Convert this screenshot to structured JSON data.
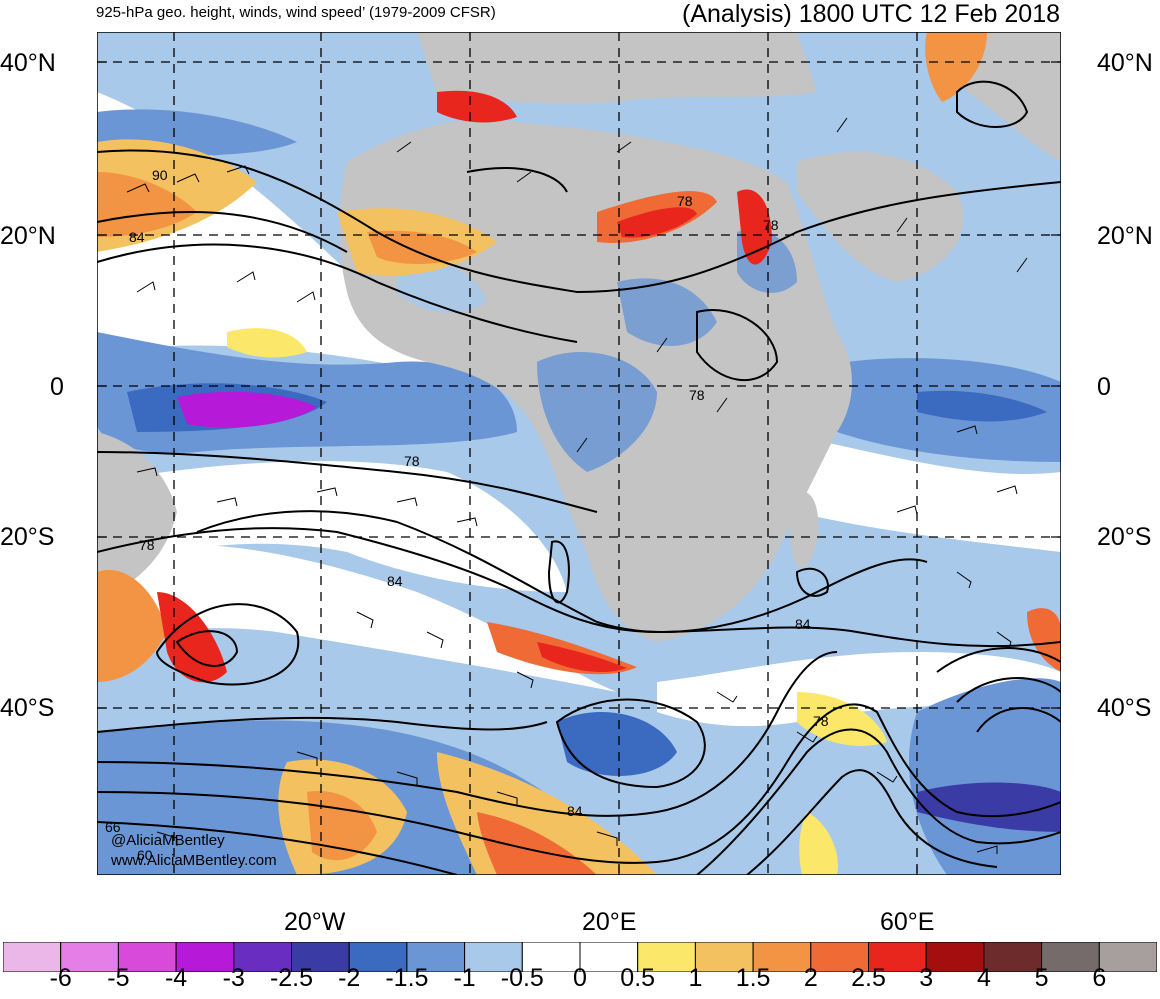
{
  "header": {
    "title_left": "925-hPa geo. height, winds, wind speed’ (1979-2009 CFSR)",
    "title_right": "(Analysis) 1800 UTC 12 Feb 2018"
  },
  "map": {
    "region": "Africa and surrounding Atlantic / Indian Oceans",
    "lat_labels": [
      "40°N",
      "20°N",
      "0",
      "20°S",
      "40°S"
    ],
    "lon_labels": [
      "20°W",
      "20°E",
      "60°E"
    ],
    "contour_labels": [
      "90",
      "84",
      "78",
      "78",
      "78",
      "78",
      "84",
      "84",
      "78",
      "84",
      "66",
      "60"
    ],
    "watermark": [
      "@AliciaMBentley",
      "www.AliciaMBentley.com"
    ],
    "colors": {
      "land_gray": "#c4c4c4",
      "strong_positive": "#e8261e",
      "strong_negative": "#9a1ad6",
      "contour": "#000000"
    }
  },
  "colorbar": {
    "labels": [
      "-6",
      "-5",
      "-4",
      "-3",
      "-2.5",
      "-2",
      "-1.5",
      "-1",
      "-0.5",
      "0",
      "0.5",
      "1",
      "1.5",
      "2",
      "2.5",
      "3",
      "4",
      "5",
      "6"
    ],
    "colors": [
      "#ebb7e8",
      "#e57ee6",
      "#d84ad9",
      "#b719d9",
      "#6a2dc2",
      "#3b3ba5",
      "#3b6ac1",
      "#6a96d6",
      "#a8c9ea",
      "#ffffff",
      "#ffffff",
      "#fbe86a",
      "#f4c161",
      "#f29444",
      "#f06a36",
      "#e8261e",
      "#a50e0e",
      "#6e2b2b",
      "#756b6b",
      "#a79e9e"
    ]
  }
}
